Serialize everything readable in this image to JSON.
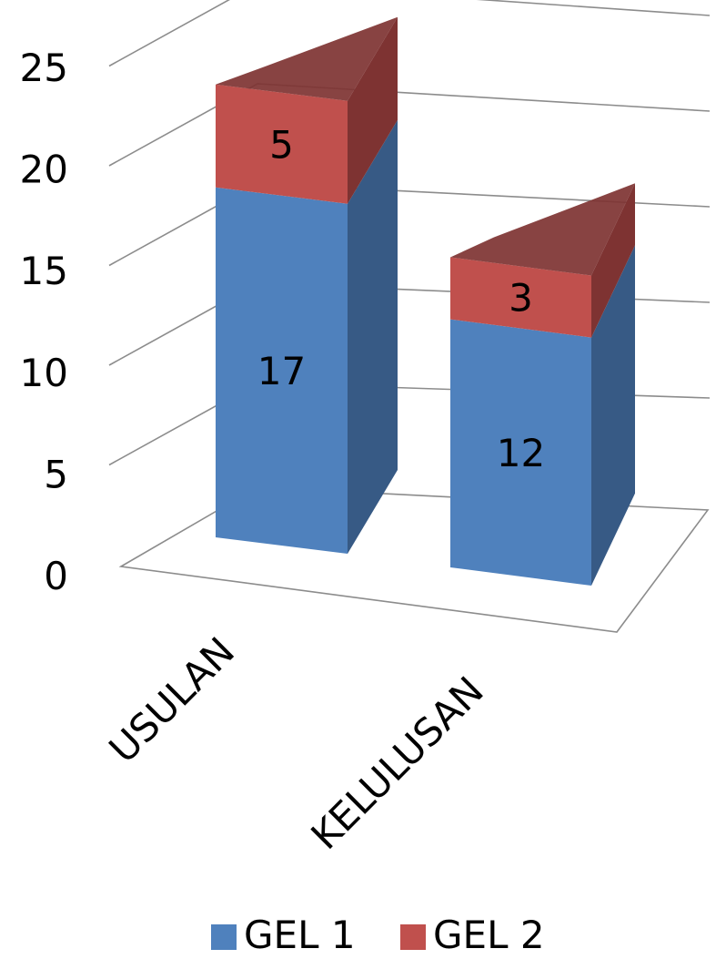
{
  "chart_data": {
    "type": "bar",
    "stacked": true,
    "three_d": true,
    "categories": [
      "USULAN",
      "KELULUSAN"
    ],
    "series": [
      {
        "name": "GEL 1",
        "values": [
          17,
          12
        ],
        "color": "#4f81bd",
        "side_color": "#375a85"
      },
      {
        "name": "GEL 2",
        "values": [
          5,
          3
        ],
        "color": "#c0504d",
        "side_color": "#7e3332"
      }
    ],
    "y_ticks": [
      "0",
      "5",
      "10",
      "15",
      "20",
      "25"
    ],
    "ylim": [
      0,
      25
    ],
    "grid": true,
    "legend_position": "bottom",
    "data_labels": true
  }
}
